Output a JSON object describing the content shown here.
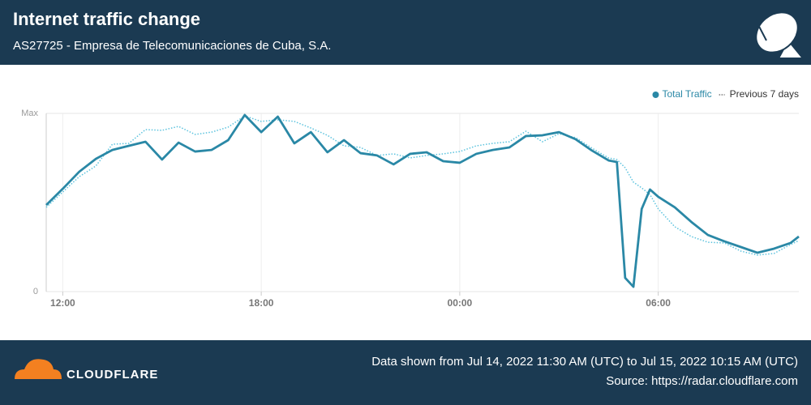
{
  "header": {
    "title": "Internet traffic change",
    "subtitle": "AS27725 - Empresa de Telecomunicaciones de Cuba, S.A."
  },
  "chart_data": {
    "type": "line",
    "x": [
      11.5,
      12,
      12.5,
      13,
      13.5,
      14,
      14.5,
      15,
      15.5,
      16,
      16.5,
      17,
      17.5,
      18,
      18.5,
      19,
      19.5,
      20,
      20.5,
      21,
      21.5,
      22,
      22.5,
      23,
      23.5,
      24,
      24.5,
      25,
      25.5,
      26,
      26.5,
      27,
      27.5,
      28,
      28.5,
      28.75,
      29,
      29.25,
      29.5,
      29.75,
      30,
      30.5,
      31,
      31.5,
      32,
      32.5,
      33,
      33.5,
      34,
      34.25
    ],
    "series": [
      {
        "name": "Total Traffic",
        "color": "#2a88a6",
        "style": "solid",
        "values": [
          48.6,
          57.7,
          67.3,
          74.5,
          79.5,
          81.8,
          84.1,
          74.1,
          83.6,
          78.6,
          79.5,
          85,
          99.1,
          89.5,
          98.2,
          83.2,
          89.5,
          78.2,
          85,
          77.7,
          76.4,
          71.4,
          77.3,
          78.2,
          73.2,
          72.3,
          77.3,
          79.5,
          80.9,
          87.3,
          87.7,
          89.5,
          85.5,
          79.1,
          73.6,
          72.7,
          7.7,
          2.7,
          46.4,
          57.3,
          53.2,
          47.3,
          39.1,
          31.8,
          28.2,
          25,
          21.8,
          24.1,
          27.3,
          30.9
        ]
      },
      {
        "name": "Previous 7 days",
        "color": "#5cc3de",
        "style": "dotted",
        "values": [
          47.3,
          55.9,
          64.5,
          70.5,
          82.7,
          83.2,
          90.9,
          90.5,
          92.7,
          88.2,
          89.5,
          92.3,
          98.6,
          95.5,
          96.4,
          95.5,
          91.8,
          87.7,
          81.8,
          80.9,
          76.4,
          77.3,
          75,
          76.4,
          77.3,
          78.6,
          81.8,
          83.2,
          84.1,
          90,
          84.1,
          88.6,
          86.4,
          80.5,
          75,
          74.1,
          69.5,
          61.4,
          58.2,
          54.5,
          46.4,
          36.4,
          30.9,
          27.7,
          27.3,
          22.7,
          20.5,
          21.4,
          26.4,
          28.6
        ]
      }
    ],
    "xlim": [
      11.5,
      34.25
    ],
    "xticks": [
      {
        "value": 12,
        "label": "12:00"
      },
      {
        "value": 18,
        "label": "18:00"
      },
      {
        "value": 24,
        "label": "00:00"
      },
      {
        "value": 30,
        "label": "06:00"
      }
    ],
    "ylim": [
      0,
      100
    ],
    "yticks": [
      {
        "value": 0,
        "label": "0"
      },
      {
        "value": 100,
        "label": "Max"
      }
    ],
    "grid": true,
    "legend": "top-right"
  },
  "footer": {
    "brand": "CLOUDFLARE",
    "date_range": "Data shown from Jul 14, 2022 11:30 AM (UTC) to Jul 15, 2022 10:15 AM (UTC)",
    "source": "Source: https://radar.cloudflare.com"
  }
}
